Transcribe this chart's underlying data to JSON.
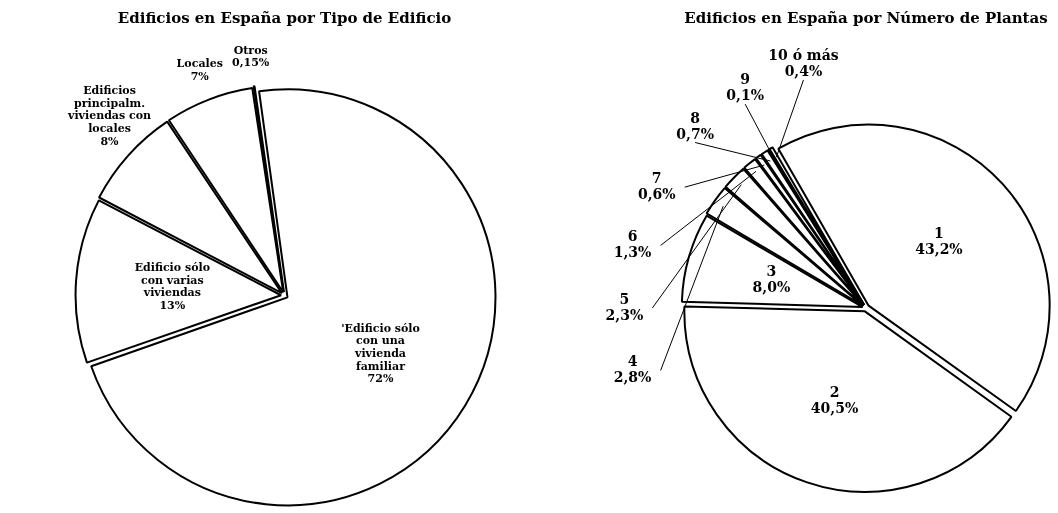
{
  "chart_data": [
    {
      "type": "pie",
      "title": "Edificios en España por Tipo de Edificio",
      "categories": [
        "'Edificio sólo con una vivienda familiar",
        "Edificio sólo con varias viviendas",
        "Edificios principalm. viviendas con locales",
        "Locales",
        "Otros"
      ],
      "values": [
        72,
        13,
        8,
        7,
        0.15
      ],
      "value_labels": [
        "72%",
        "13%",
        "8%",
        "7%",
        "0,15%"
      ],
      "colors": [
        "#ffffff",
        "#ffffff",
        "#ffffff",
        "#ffffff",
        "#ffffff"
      ]
    },
    {
      "type": "pie",
      "title": "Edificios en España por Número de Plantas",
      "categories": [
        "1",
        "2",
        "3",
        "4",
        "5",
        "6",
        "7",
        "8",
        "9",
        "10 ó más"
      ],
      "values": [
        43.2,
        40.5,
        8.0,
        2.8,
        2.3,
        1.3,
        0.6,
        0.7,
        0.1,
        0.4
      ],
      "value_labels": [
        "43,2%",
        "40,5%",
        "8,0%",
        "2,8%",
        "2,3%",
        "1,3%",
        "0,6%",
        "0,7%",
        "0,1%",
        "0,4%"
      ],
      "colors": [
        "#ffffff",
        "#ffffff",
        "#ffffff",
        "#ffffff",
        "#ffffff",
        "#ffffff",
        "#ffffff",
        "#ffffff",
        "#ffffff",
        "#ffffff"
      ]
    }
  ]
}
